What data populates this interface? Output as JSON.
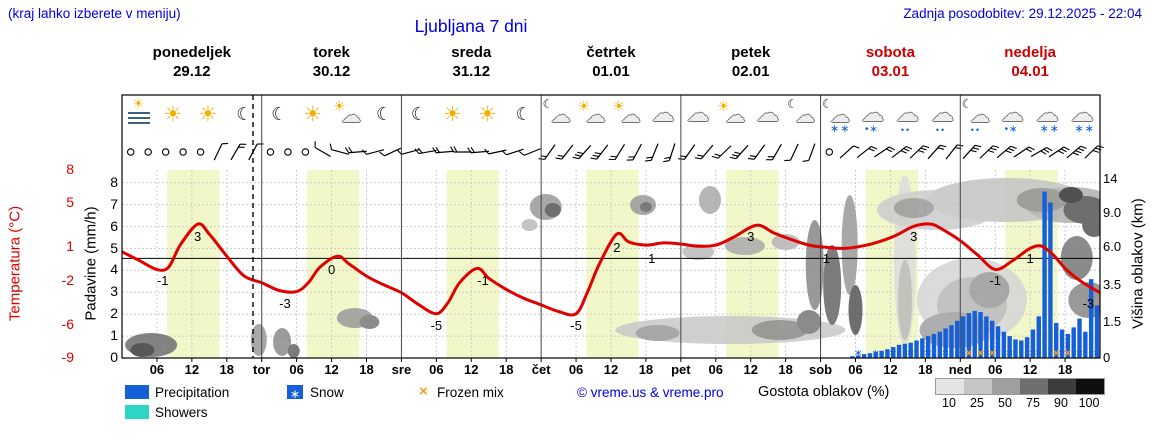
{
  "header": {
    "hint": "(kraj lahko izberete v meniju)",
    "title": "Ljubljana 7 dni",
    "updated": "Zadnja posodobitev: 29.12.2025 - 22:04"
  },
  "days": [
    {
      "name": "ponedeljek",
      "date": "29.12",
      "color": "#000000"
    },
    {
      "name": "torek",
      "date": "30.12",
      "color": "#000000"
    },
    {
      "name": "sreda",
      "date": "31.12",
      "color": "#000000"
    },
    {
      "name": "četrtek",
      "date": "01.01",
      "color": "#000000"
    },
    {
      "name": "petek",
      "date": "02.01",
      "color": "#000000"
    },
    {
      "name": "sobota",
      "date": "03.01",
      "color": "#cc0000"
    },
    {
      "name": "nedelja",
      "date": "04.01",
      "color": "#cc0000"
    }
  ],
  "axes": {
    "temp_label": "Temperatura (°C)",
    "precip_label": "Padavine (mm/h)",
    "cloud_label": "Višina oblakov (km)",
    "temp_ticks": [
      8,
      5,
      1,
      -2,
      -6,
      -9
    ],
    "precip_ticks": [
      8,
      7,
      6,
      5,
      4,
      3,
      2,
      1,
      0
    ],
    "cloud_ticks": [
      {
        "km": 14,
        "label": "14"
      },
      {
        "km": 9,
        "label": "9.0"
      },
      {
        "km": 6,
        "label": "6.0"
      },
      {
        "km": 3.5,
        "label": "3.5"
      },
      {
        "km": 1.5,
        "label": "1.5"
      },
      {
        "km": 0,
        "label": "0"
      }
    ],
    "time_ticks": [
      "06",
      "12",
      "18"
    ],
    "day_abbrev": [
      "tor",
      "sre",
      "čet",
      "pet",
      "sob",
      "ned"
    ]
  },
  "legend": {
    "precipitation": "Precipitation",
    "showers": "Showers",
    "snow": "Snow",
    "frozen": "Frozen mix",
    "credit": "© vreme.us & vreme.pro",
    "cloud_density": "Gostota oblakov (%)",
    "scale": [
      "10",
      "25",
      "50",
      "75",
      "90",
      "100"
    ],
    "scale_colors": [
      "#e4e4e4",
      "#c6c6c6",
      "#a0a0a0",
      "#6e6e6e",
      "#3c3c3c",
      "#0e0e0e"
    ]
  },
  "icon_glyphs": {
    "snow_marker": "∗",
    "frozen_marker": "×",
    "rain_drop": "•"
  },
  "colors": {
    "header_blue": "#0000e0",
    "temp_red": "#e10000",
    "tick_red": "#dd0000",
    "precip_blue": "#1560d8",
    "showers_cyan": "#2bd6c9",
    "frozen_orange": "#f0a020",
    "daylight": "#f2f7c9",
    "weekend_red": "#cc0000",
    "grid": "#cccccc"
  },
  "chart_data": {
    "type": "line",
    "title": "Ljubljana 7 dni",
    "x_axis": {
      "unit": "hours from Monday 00:00",
      "days": 7,
      "tick_every_h": 6
    },
    "ylim_precip_mm_h": [
      0,
      8
    ],
    "daylight_h": [
      7.75,
      16.75
    ],
    "now_h": 22.5,
    "temperature_degC": [
      [
        0,
        0.6
      ],
      [
        3,
        -0.2
      ],
      [
        6,
        -1
      ],
      [
        8,
        -0.8
      ],
      [
        10,
        1.2
      ],
      [
        13,
        3.1
      ],
      [
        15,
        2.2
      ],
      [
        18,
        0.2
      ],
      [
        21,
        -1.6
      ],
      [
        24,
        -2.2
      ],
      [
        27,
        -2.9
      ],
      [
        30,
        -3
      ],
      [
        32,
        -2.2
      ],
      [
        34,
        -0.8
      ],
      [
        37,
        0.2
      ],
      [
        39,
        -0.5
      ],
      [
        42,
        -1.6
      ],
      [
        45,
        -2.4
      ],
      [
        48,
        -3.1
      ],
      [
        51,
        -4.2
      ],
      [
        54,
        -5
      ],
      [
        56,
        -4
      ],
      [
        58,
        -2.2
      ],
      [
        61,
        -0.9
      ],
      [
        63,
        -1.8
      ],
      [
        66,
        -2.8
      ],
      [
        69,
        -3.6
      ],
      [
        72,
        -4.2
      ],
      [
        75,
        -4.8
      ],
      [
        78,
        -5
      ],
      [
        80,
        -3
      ],
      [
        82,
        -0.5
      ],
      [
        85,
        2.2
      ],
      [
        87,
        1.5
      ],
      [
        90,
        1.2
      ],
      [
        93,
        1.4
      ],
      [
        96,
        1.3
      ],
      [
        99,
        1.1
      ],
      [
        102,
        1.2
      ],
      [
        105,
        1.9
      ],
      [
        109,
        3
      ],
      [
        112,
        2.3
      ],
      [
        115,
        1.7
      ],
      [
        118,
        1.2
      ],
      [
        121,
        1
      ],
      [
        124,
        0.9
      ],
      [
        127,
        1.1
      ],
      [
        130,
        1.5
      ],
      [
        133,
        2.1
      ],
      [
        136,
        2.9
      ],
      [
        139,
        3.1
      ],
      [
        141,
        2.6
      ],
      [
        144,
        1.6
      ],
      [
        147,
        0.3
      ],
      [
        150,
        -1
      ],
      [
        153,
        -0.2
      ],
      [
        156,
        0.9
      ],
      [
        158,
        1.1
      ],
      [
        160,
        0.3
      ],
      [
        162,
        -0.9
      ],
      [
        164,
        -1.8
      ],
      [
        166,
        -2.5
      ],
      [
        168,
        -3.1
      ]
    ],
    "temperature_point_labels": [
      [
        7,
        -1
      ],
      [
        13,
        3
      ],
      [
        28,
        -3
      ],
      [
        36,
        0
      ],
      [
        54,
        -5
      ],
      [
        62,
        -1
      ],
      [
        78,
        -5
      ],
      [
        85,
        2
      ],
      [
        91,
        1
      ],
      [
        108,
        3
      ],
      [
        121,
        1
      ],
      [
        136,
        3
      ],
      [
        150,
        -1
      ],
      [
        156,
        1
      ],
      [
        166,
        -3
      ]
    ],
    "precipitation_mm_h": [
      [
        125,
        0.08
      ],
      [
        126,
        0.12
      ],
      [
        127,
        0.18
      ],
      [
        128,
        0.22
      ],
      [
        129,
        0.28
      ],
      [
        130,
        0.33
      ],
      [
        131,
        0.4
      ],
      [
        132,
        0.5
      ],
      [
        133,
        0.6
      ],
      [
        134,
        0.65
      ],
      [
        135,
        0.7
      ],
      [
        136,
        0.8
      ],
      [
        137,
        0.9
      ],
      [
        138,
        1.0
      ],
      [
        139,
        1.1
      ],
      [
        140,
        1.2
      ],
      [
        141,
        1.35
      ],
      [
        142,
        1.5
      ],
      [
        143,
        1.7
      ],
      [
        144,
        1.9
      ],
      [
        145,
        2.05
      ],
      [
        146,
        2.15
      ],
      [
        147,
        2.1
      ],
      [
        148,
        1.9
      ],
      [
        149,
        1.7
      ],
      [
        150,
        1.45
      ],
      [
        151,
        1.2
      ],
      [
        152,
        1.0
      ],
      [
        153,
        0.85
      ],
      [
        154,
        0.8
      ],
      [
        155,
        0.95
      ],
      [
        156,
        1.3
      ],
      [
        157,
        1.9
      ],
      [
        158,
        7.6
      ],
      [
        159,
        7.1
      ],
      [
        160,
        1.6
      ],
      [
        161,
        1.3
      ],
      [
        162,
        1.1
      ],
      [
        163,
        1.4
      ],
      [
        164,
        1.8
      ],
      [
        165,
        1.2
      ],
      [
        166,
        3.6
      ],
      [
        167,
        2.4
      ]
    ],
    "frozen_mix_h": [
      145,
      147,
      149,
      160,
      162
    ],
    "snow_marker_h": [
      126,
      129,
      132,
      135,
      138,
      141,
      144,
      148,
      152,
      156,
      161,
      164,
      167
    ],
    "wind_barbs": [
      [
        null,
        0
      ],
      [
        null,
        0
      ],
      [
        null,
        0
      ],
      [
        null,
        0
      ],
      [
        null,
        0
      ],
      [
        25,
        1
      ],
      [
        30,
        2
      ],
      [
        28,
        1
      ],
      [
        null,
        0
      ],
      [
        null,
        0
      ],
      [
        null,
        0
      ],
      [
        300,
        1
      ],
      [
        285,
        1
      ],
      [
        265,
        2
      ],
      [
        255,
        1
      ],
      [
        245,
        1
      ],
      [
        255,
        1
      ],
      [
        260,
        2
      ],
      [
        265,
        2
      ],
      [
        270,
        2
      ],
      [
        265,
        2
      ],
      [
        258,
        1
      ],
      [
        252,
        1
      ],
      [
        248,
        1
      ],
      [
        215,
        2
      ],
      [
        218,
        2
      ],
      [
        222,
        3
      ],
      [
        218,
        3
      ],
      [
        212,
        2
      ],
      [
        208,
        2
      ],
      [
        202,
        2
      ],
      [
        198,
        2
      ],
      [
        215,
        2
      ],
      [
        220,
        2
      ],
      [
        226,
        2
      ],
      [
        222,
        3
      ],
      [
        216,
        2
      ],
      [
        210,
        2
      ],
      [
        205,
        1
      ],
      [
        200,
        1
      ],
      [
        null,
        0
      ],
      [
        48,
        1
      ],
      [
        52,
        2
      ],
      [
        56,
        2
      ],
      [
        52,
        3
      ],
      [
        46,
        3
      ],
      [
        42,
        2
      ],
      [
        38,
        2
      ],
      [
        42,
        3
      ],
      [
        46,
        3
      ],
      [
        50,
        3
      ],
      [
        56,
        2
      ],
      [
        60,
        3
      ],
      [
        56,
        3
      ],
      [
        50,
        4
      ],
      [
        46,
        3
      ]
    ],
    "weather_icons": [
      [
        3,
        "fog-sun"
      ],
      [
        9,
        "sun"
      ],
      [
        15,
        "sun"
      ],
      [
        21,
        "moon"
      ],
      [
        27,
        "moon"
      ],
      [
        33,
        "sun"
      ],
      [
        39,
        "sun-cloud"
      ],
      [
        45,
        "moon"
      ],
      [
        51,
        "moon"
      ],
      [
        57,
        "sun"
      ],
      [
        63,
        "sun"
      ],
      [
        69,
        "moon"
      ],
      [
        75,
        "cloud-moon"
      ],
      [
        81,
        "sun-cloud"
      ],
      [
        87,
        "sun-cloud"
      ],
      [
        93,
        "cloud"
      ],
      [
        99,
        "cloud"
      ],
      [
        105,
        "sun-cloud"
      ],
      [
        111,
        "cloud"
      ],
      [
        117,
        "cloud-moon"
      ],
      [
        123,
        "snow-moon"
      ],
      [
        129,
        "sleet"
      ],
      [
        135,
        "rain"
      ],
      [
        141,
        "rain"
      ],
      [
        147,
        "rain-moon"
      ],
      [
        153,
        "sleet"
      ],
      [
        159,
        "snow"
      ],
      [
        165,
        "snow"
      ]
    ],
    "cloud_blobs": [
      [
        5,
        345,
        26,
        12,
        "#6e6e6e"
      ],
      [
        3.5,
        350,
        12,
        7,
        "#3a3a3a"
      ],
      [
        23.5,
        340,
        8,
        16,
        "#9a9a9a"
      ],
      [
        27.5,
        342,
        9,
        14,
        "#8a8a8a"
      ],
      [
        29.5,
        351,
        6,
        7,
        "#666666"
      ],
      [
        40,
        318,
        18,
        10,
        "#9a9a9a"
      ],
      [
        42.5,
        322,
        10,
        7,
        "#787878"
      ],
      [
        70,
        225,
        8,
        6,
        "#bbbbbb"
      ],
      [
        72.8,
        207,
        16,
        13,
        "#999999"
      ],
      [
        74,
        210,
        8,
        7,
        "#555555"
      ],
      [
        89.5,
        205,
        13,
        10,
        "#999999"
      ],
      [
        90,
        207,
        6,
        5,
        "#666666"
      ],
      [
        101,
        200,
        11,
        14,
        "#aaaaaa"
      ],
      [
        104.5,
        330,
        115,
        14,
        "#c8c8c8"
      ],
      [
        92,
        333,
        22,
        8,
        "#999999"
      ],
      [
        113,
        330,
        28,
        10,
        "#8a8a8a"
      ],
      [
        118,
        322,
        12,
        12,
        "#777777"
      ],
      [
        99,
        252,
        16,
        8,
        "#bbbbbb"
      ],
      [
        107,
        246,
        20,
        9,
        "#aaaaaa"
      ],
      [
        114,
        242,
        14,
        8,
        "#b5b5b5"
      ],
      [
        119,
        265,
        9,
        45,
        "#888888"
      ],
      [
        122,
        285,
        9,
        40,
        "#666666"
      ],
      [
        125,
        245,
        8,
        50,
        "#999999"
      ],
      [
        126,
        310,
        7,
        25,
        "#555555"
      ],
      [
        134.5,
        260,
        11,
        85,
        "#dddddd"
      ],
      [
        134.5,
        300,
        7,
        40,
        "#bbbbbb"
      ],
      [
        140,
        210,
        60,
        20,
        "#cccccc"
      ],
      [
        152,
        200,
        80,
        22,
        "#c4c4c4"
      ],
      [
        163,
        205,
        45,
        18,
        "#b0b0b0"
      ],
      [
        136,
        208,
        20,
        10,
        "#999999"
      ],
      [
        158,
        200,
        25,
        12,
        "#909090"
      ],
      [
        165.5,
        210,
        22,
        14,
        "#555555"
      ],
      [
        163,
        195,
        12,
        8,
        "#333333"
      ],
      [
        146,
        300,
        55,
        42,
        "#d5d5d5"
      ],
      [
        146,
        305,
        35,
        28,
        "#b8b8b8"
      ],
      [
        143,
        330,
        35,
        18,
        "#a0a0a0"
      ],
      [
        149,
        290,
        20,
        18,
        "#999999"
      ],
      [
        164,
        258,
        16,
        22,
        "#777777"
      ],
      [
        166,
        300,
        20,
        18,
        "#888888"
      ],
      [
        167,
        225,
        12,
        12,
        "#555555"
      ]
    ]
  }
}
